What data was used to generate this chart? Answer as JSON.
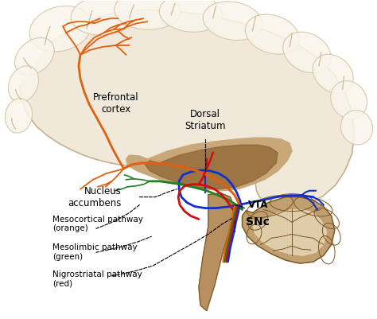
{
  "background_color": "#ffffff",
  "figsize": [
    4.74,
    4.01
  ],
  "dpi": 100,
  "colors": {
    "cortex_fill": "#f0e8d8",
    "cortex_edge": "#c8b090",
    "gyrus_highlight": "#faf5ec",
    "gyrus_shadow": "#d4c0a0",
    "inner_fill": "#c8a878",
    "inner_dark": "#8b6030",
    "brainstem_fill": "#b89060",
    "brainstem_edge": "#7a5520",
    "cerebellum_fill": "#c0a070",
    "cerebellum_edge": "#7a5520",
    "cerebellum_inner": "#e8d8b8",
    "white_matter": "#e8d8c0",
    "pathway_orange": "#e06010",
    "pathway_green": "#208020",
    "pathway_red": "#cc1010",
    "pathway_blue": "#1030cc",
    "label_color": "#000000",
    "dashed_color": "#000000"
  },
  "labels": {
    "prefrontal_cortex": "Prefrontal\ncortex",
    "nucleus_accumbens": "Nucleus\naccumbens",
    "dorsal_striatum": "Dorsal\nStriatum",
    "VTA": "VTA",
    "SNc": "SNc",
    "mesocortical": "Mesocortical pathway\n(orange)",
    "mesolimbic": "Mesolimbic pathway\n(green)",
    "nigrostriatal": "Nigrostriatal pathway\n(red)"
  }
}
